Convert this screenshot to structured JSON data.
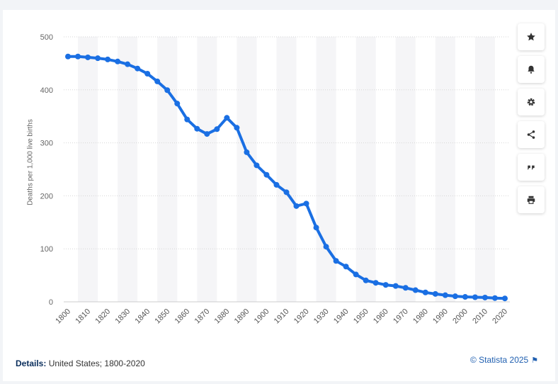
{
  "chart_data": {
    "type": "line",
    "ylabel": "Deaths per 1,000 live births",
    "ylim": [
      0,
      500
    ],
    "yticks": [
      0,
      100,
      200,
      300,
      400,
      500
    ],
    "xtick_labels": [
      "1800",
      "1810",
      "1820",
      "1830",
      "1840",
      "1850",
      "1860",
      "1870",
      "1880",
      "1890",
      "1900",
      "1910",
      "1920",
      "1930",
      "1940",
      "1950",
      "1960",
      "1970",
      "1980",
      "1990",
      "2000",
      "2010",
      "2020"
    ],
    "x": [
      1800,
      1805,
      1810,
      1815,
      1820,
      1825,
      1830,
      1835,
      1840,
      1845,
      1850,
      1855,
      1860,
      1865,
      1870,
      1875,
      1880,
      1885,
      1890,
      1895,
      1900,
      1905,
      1910,
      1915,
      1920,
      1925,
      1930,
      1935,
      1940,
      1945,
      1950,
      1955,
      1960,
      1965,
      1970,
      1975,
      1980,
      1985,
      1990,
      1995,
      2000,
      2005,
      2010,
      2015,
      2020
    ],
    "values": [
      462.9,
      462.9,
      461.3,
      459.7,
      457.4,
      453.5,
      448.3,
      440.2,
      430.5,
      415.9,
      399.4,
      374.1,
      344.1,
      326.6,
      316.7,
      325.8,
      347.2,
      328.5,
      282.2,
      257.6,
      239.7,
      220.7,
      206.8,
      180.7,
      185.4,
      140.1,
      104.0,
      77.2,
      66.5,
      51.6,
      40.4,
      35.8,
      31.9,
      29.9,
      26.4,
      22.0,
      17.7,
      14.9,
      12.5,
      10.5,
      9.3,
      8.7,
      8.1,
      7.1,
      6.4
    ],
    "grid": true,
    "line_color": "#1a6fe3",
    "band_color": "#f5f5f7"
  },
  "details": {
    "label": "Details:",
    "text": "United States; 1800-2020"
  },
  "credit": {
    "text": "© Statista 2025"
  },
  "side_buttons": [
    {
      "icon": "star-icon"
    },
    {
      "icon": "bell-icon"
    },
    {
      "icon": "gear-icon"
    },
    {
      "icon": "share-icon"
    },
    {
      "icon": "quote-icon"
    },
    {
      "icon": "print-icon"
    }
  ]
}
